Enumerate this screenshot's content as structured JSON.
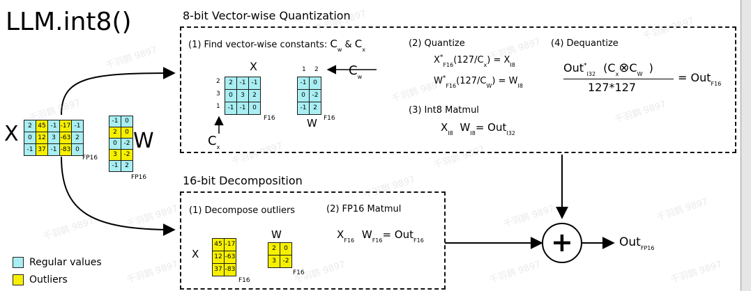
{
  "title": "LLM.int8()",
  "vw": {
    "title": "8-bit Vector-wise Quantization",
    "step1": "(1) Find vector-wise constants: ",
    "step1_cw": "C",
    "step1_cw_sub": "w",
    "step1_amp": " & ",
    "step1_cx": "C",
    "step1_cx_sub": "x",
    "step2": "(2) Quantize",
    "step3": "(3) Int8 Matmul",
    "step4": "(4) Dequantize",
    "x_label": "X",
    "x_row_nums": [
      "2",
      "3",
      "1"
    ],
    "x_matrix": [
      [
        "2",
        "-1",
        "-1"
      ],
      [
        "0",
        "3",
        "2"
      ],
      [
        "-1",
        "-1",
        "0"
      ]
    ],
    "x_type": "F16",
    "cx_label": "C",
    "cx_sub": "x",
    "w_col_nums": [
      "1",
      "2"
    ],
    "w_matrix": [
      [
        "-1",
        "0"
      ],
      [
        "0",
        "-2"
      ],
      [
        "-1",
        "2"
      ]
    ],
    "w_label": "W",
    "w_type": "F16",
    "cw_label": "C",
    "cw_sub": "w"
  },
  "quant": {
    "line1": {
      "a": "X",
      "a_sup": "*",
      "a_sub": "F16",
      "b": "(127/C",
      "b_sub": "x",
      "c": ") = X",
      "c_sub": "I8"
    },
    "line2": {
      "a": "W",
      "a_sup": "*",
      "a_sub": "F16",
      "b": "(127/C",
      "b_sub": "W",
      "c": ") = W",
      "c_sub": "I8"
    }
  },
  "matmul8": {
    "x": "X",
    "x_sub": "I8",
    "w": "W",
    "w_sub": "I8",
    "eq": "= Out",
    "eq_sub": "I32"
  },
  "dequant": {
    "num_a": "Out",
    "num_a_sup": "*",
    "num_a_sub": "I32",
    "num_b": "(C",
    "num_b_sub": "x",
    "num_c": "C",
    "num_c_sub": "W",
    "num_d": ")",
    "den": "127*127",
    "eq": "= Out",
    "eq_sub": "F16"
  },
  "left": {
    "x_label": "X",
    "x_matrix": [
      [
        "2",
        "45",
        "-1",
        "-17",
        "-1"
      ],
      [
        "0",
        "12",
        "3",
        "-63",
        "2"
      ],
      [
        "-1",
        "37",
        "-1",
        "-83",
        "0"
      ]
    ],
    "x_outlier_cols": [
      1,
      3
    ],
    "x_type": "FP16",
    "w_label": "W",
    "w_matrix": [
      [
        "-1",
        "0"
      ],
      [
        "2",
        "0"
      ],
      [
        "0",
        "-2"
      ],
      [
        "3",
        "-2"
      ],
      [
        "-1",
        "2"
      ]
    ],
    "w_outlier_rows": [
      1,
      3
    ],
    "w_type": "FP16"
  },
  "decomp": {
    "title": "16-bit Decomposition",
    "step1": "(1) Decompose outliers",
    "step2": "(2) FP16 Matmul",
    "x_label": "X",
    "x_matrix": [
      [
        "45",
        "-17"
      ],
      [
        "12",
        "-63"
      ],
      [
        "37",
        "-83"
      ]
    ],
    "x_type": "F16",
    "w_label": "W",
    "w_matrix": [
      [
        "2",
        "0"
      ],
      [
        "3",
        "-2"
      ]
    ],
    "w_type": "F16",
    "mm": {
      "x": "X",
      "x_sub": "F16",
      "w": "W",
      "w_sub": "F16",
      "eq": "= Out",
      "eq_sub": "F16"
    }
  },
  "sum": {
    "plus": "+",
    "out": "Out",
    "out_sub": "FP16"
  },
  "legend": {
    "regular": "Regular values",
    "outliers": "Outliers"
  },
  "watermark": "千羽鹊 9897",
  "colors": {
    "regular": "#a8eef2",
    "outlier": "#f6f000"
  }
}
